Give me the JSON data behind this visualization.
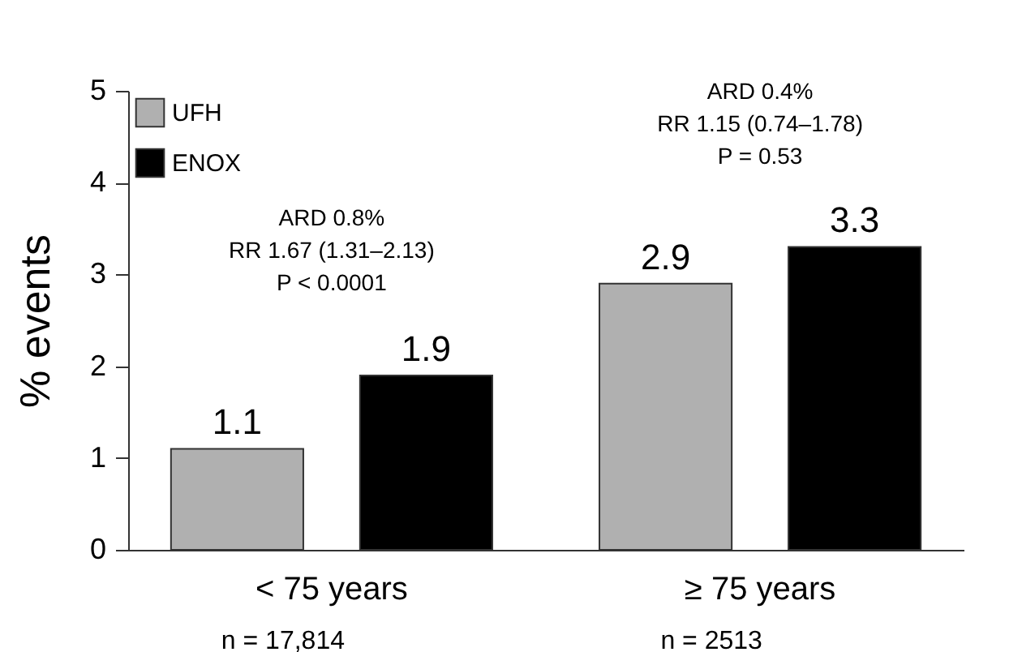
{
  "chart_data": {
    "type": "bar",
    "ylabel": "% events",
    "categories": [
      "< 75 years",
      "≥ 75 years"
    ],
    "series": [
      {
        "name": "UFH",
        "color": "#b0b0b0",
        "values": [
          1.1,
          2.9
        ]
      },
      {
        "name": "ENOX",
        "color": "#000000",
        "values": [
          1.9,
          3.3
        ]
      }
    ],
    "ylim": [
      0,
      5
    ],
    "yticks": [
      0,
      1,
      2,
      3,
      4,
      5
    ],
    "grid": false,
    "legend": "top left",
    "data_labels": true,
    "annotations": [
      "ARD 0.8%\nRR 1.67 (1.31–2.13)\nP < 0.0001",
      "ARD 0.4%\nRR 1.15 (0.74–1.78)\nP = 0.53",
      "n = 17,814",
      "n = 2513"
    ]
  }
}
